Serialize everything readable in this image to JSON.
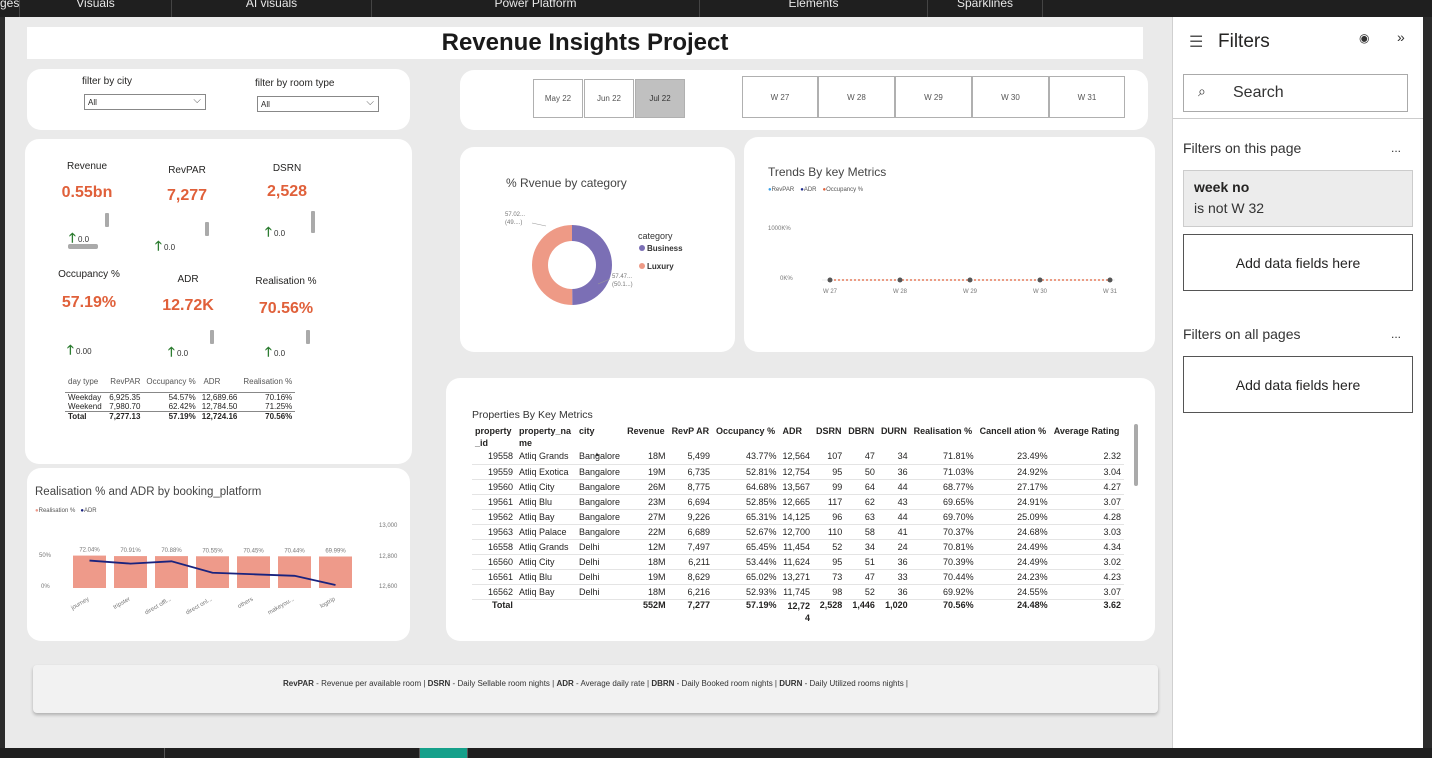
{
  "ribbon": {
    "tabs": [
      "ges",
      "Visuals",
      "AI visuals",
      "Power Platform",
      "Elements",
      "Sparklines"
    ]
  },
  "title": "Revenue Insights Project",
  "slicers": {
    "city_label": "filter by city",
    "city_value": "All",
    "room_label": "filter by room type",
    "room_value": "All"
  },
  "months": [
    {
      "label": "May 22",
      "selected": false
    },
    {
      "label": "Jun 22",
      "selected": false
    },
    {
      "label": "Jul 22",
      "selected": true
    }
  ],
  "weeks": [
    "W 27",
    "W 28",
    "W 29",
    "W 30",
    "W 31"
  ],
  "kpis": [
    {
      "title": "Revenue",
      "value": "0.55bn",
      "delta": "0.0"
    },
    {
      "title": "RevPAR",
      "value": "7,277",
      "delta": "0.0"
    },
    {
      "title": "DSRN",
      "value": "2,528",
      "delta": "0.0"
    },
    {
      "title": "Occupancy %",
      "value": "57.19%",
      "delta": "0.00"
    },
    {
      "title": "ADR",
      "value": "12.72K",
      "delta": "0.0"
    },
    {
      "title": "Realisation %",
      "value": "70.56%",
      "delta": "0.0"
    }
  ],
  "daytype": {
    "headers": [
      "day type",
      "RevPAR",
      "Occupancy %",
      "ADR",
      "Realisation %"
    ],
    "rows": [
      [
        "Weekday",
        "6,925.35",
        "54.57%",
        "12,689.66",
        "70.16%"
      ],
      [
        "Weekend",
        "7,980.70",
        "62.42%",
        "12,784.50",
        "71.25%"
      ]
    ],
    "total": [
      "Total",
      "7,277.13",
      "57.19%",
      "12,724.16",
      "70.56%"
    ]
  },
  "donut": {
    "title": "% Rvenue by category",
    "legend_title": "category",
    "label_business": "57.02... (49....)",
    "label_luxury": "57.47... (50.1...)"
  },
  "trends": {
    "title": "Trends By key Metrics",
    "y_labels": [
      "1000K%",
      "0K%"
    ]
  },
  "bar_chart": {
    "title": "Realisation % and ADR by booking_platform",
    "y_left": [
      "50%",
      "0%"
    ],
    "y_right": [
      "13,000",
      "12,800",
      "12,600"
    ]
  },
  "table": {
    "title": "Properties By Key Metrics",
    "headers": [
      "property _id",
      "property_na me",
      "city",
      "Revenue",
      "RevP AR",
      "Occupancy %",
      "ADR",
      "DSRN",
      "DBRN",
      "DURN",
      "Realisation %",
      "Cancell ation %",
      "Average Rating"
    ],
    "rows": [
      [
        "19558",
        "Atliq Grands",
        "Bangalore",
        "18M",
        "5,499",
        "43.77%",
        "12,564",
        "107",
        "47",
        "34",
        "71.81%",
        "23.49%",
        "2.32"
      ],
      [
        "19559",
        "Atliq Exotica",
        "Bangalore",
        "19M",
        "6,735",
        "52.81%",
        "12,754",
        "95",
        "50",
        "36",
        "71.03%",
        "24.92%",
        "3.04"
      ],
      [
        "19560",
        "Atliq City",
        "Bangalore",
        "26M",
        "8,775",
        "64.68%",
        "13,567",
        "99",
        "64",
        "44",
        "68.77%",
        "27.17%",
        "4.27"
      ],
      [
        "19561",
        "Atliq Blu",
        "Bangalore",
        "23M",
        "6,694",
        "52.85%",
        "12,665",
        "117",
        "62",
        "43",
        "69.65%",
        "24.91%",
        "3.07"
      ],
      [
        "19562",
        "Atliq Bay",
        "Bangalore",
        "27M",
        "9,226",
        "65.31%",
        "14,125",
        "96",
        "63",
        "44",
        "69.70%",
        "25.09%",
        "4.28"
      ],
      [
        "19563",
        "Atliq Palace",
        "Bangalore",
        "22M",
        "6,689",
        "52.67%",
        "12,700",
        "110",
        "58",
        "41",
        "70.37%",
        "24.68%",
        "3.03"
      ],
      [
        "16558",
        "Atliq Grands",
        "Delhi",
        "12M",
        "7,497",
        "65.45%",
        "11,454",
        "52",
        "34",
        "24",
        "70.81%",
        "24.49%",
        "4.34"
      ],
      [
        "16560",
        "Atliq City",
        "Delhi",
        "18M",
        "6,211",
        "53.44%",
        "11,624",
        "95",
        "51",
        "36",
        "70.39%",
        "24.49%",
        "3.02"
      ],
      [
        "16561",
        "Atliq Blu",
        "Delhi",
        "19M",
        "8,629",
        "65.02%",
        "13,271",
        "73",
        "47",
        "33",
        "70.44%",
        "24.23%",
        "4.23"
      ],
      [
        "16562",
        "Atliq Bay",
        "Delhi",
        "18M",
        "6,216",
        "52.93%",
        "11,745",
        "98",
        "52",
        "36",
        "69.92%",
        "24.55%",
        "3.07"
      ]
    ],
    "total": [
      "Total",
      "",
      "",
      "552M",
      "7,277",
      "57.19%",
      "12,72 4",
      "2,528",
      "1,446",
      "1,020",
      "70.56%",
      "24.48%",
      "3.62"
    ]
  },
  "footer": [
    {
      "b": "RevPAR",
      "t": " - Revenue per available room | "
    },
    {
      "b": "DSRN",
      "t": " - Daily Sellable room nights | "
    },
    {
      "b": "ADR",
      "t": " - Average daily rate | "
    },
    {
      "b": "DBRN",
      "t": " - Daily Booked room nights | "
    },
    {
      "b": "DURN",
      "t": " - Daily Utilized rooms nights |"
    }
  ],
  "filters": {
    "title": "Filters",
    "search_placeholder": "Search",
    "this_page": "Filters on this page",
    "card_title": "week no",
    "card_cond": "is not W 32",
    "add_fields": "Add data fields here",
    "all_pages": "Filters on all pages",
    "more": "..."
  },
  "colors": {
    "kpi": "#e0603a",
    "business": "#7b6fb5",
    "luxury": "#ee9a86",
    "revpar": "#3aa0e8",
    "adr": "#1d2a8c",
    "occ": "#e0603a",
    "bar": "#ee9a8a",
    "line": "#1a237e"
  },
  "chart_data": [
    {
      "type": "pie",
      "title": "% Rvenue by category",
      "categories": [
        "Business",
        "Luxury"
      ],
      "values": [
        49.9,
        50.1
      ]
    },
    {
      "type": "line",
      "title": "Trends By key Metrics",
      "categories": [
        "W 27",
        "W 28",
        "W 29",
        "W 30",
        "W 31"
      ],
      "series": [
        {
          "name": "RevPAR",
          "values": [
            7200,
            7100,
            7100,
            6800,
            6800
          ]
        },
        {
          "name": "ADR",
          "values": [
            12600,
            12600,
            12600,
            12600,
            12600
          ]
        },
        {
          "name": "Occupancy %",
          "values": [
            57,
            57,
            57,
            57,
            57
          ]
        }
      ],
      "ylim": [
        0,
        1400000
      ]
    },
    {
      "type": "bar",
      "title": "Realisation % and ADR by booking_platform",
      "categories": [
        "journey",
        "tripster",
        "direct offl...",
        "direct onl...",
        "others",
        "makeyou...",
        "logtrip"
      ],
      "series": [
        {
          "name": "Realisation %",
          "values": [
            72.04,
            70.91,
            70.88,
            70.55,
            70.45,
            70.44,
            69.99
          ]
        },
        {
          "name": "ADR",
          "values": [
            12780,
            12760,
            12775,
            12700,
            12690,
            12680,
            12620
          ]
        }
      ],
      "ylim": [
        0,
        100
      ],
      "y2lim": [
        12600,
        13000
      ]
    }
  ]
}
